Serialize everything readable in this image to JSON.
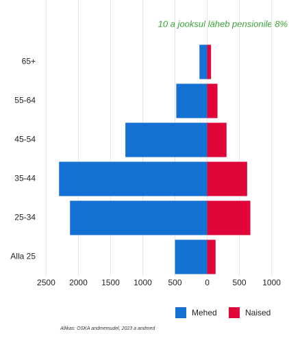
{
  "chart_data": {
    "type": "bar",
    "orientation": "horizontal",
    "annotation": "10 a jooksul läheb pensionile 8%",
    "source": "Allikas: OSKA andmemudel, 2023 a andmed",
    "categories": [
      "65+",
      "55-64",
      "45-54",
      "35-44",
      "25-34",
      "Alla 25"
    ],
    "series": [
      {
        "name": "Mehed",
        "color": "#1570d4",
        "values": [
          -120,
          -480,
          -1270,
          -2300,
          -2130,
          -500
        ]
      },
      {
        "name": "Naised",
        "color": "#e0063a",
        "values": [
          60,
          160,
          300,
          620,
          670,
          130
        ]
      }
    ],
    "xlim": [
      -2600,
      1100
    ],
    "xticks": [
      {
        "value": -2500,
        "label": "2500"
      },
      {
        "value": -2000,
        "label": "2000"
      },
      {
        "value": -1500,
        "label": "1500"
      },
      {
        "value": -1000,
        "label": "1000"
      },
      {
        "value": -500,
        "label": "500"
      },
      0,
      500,
      1000
    ],
    "grid": true,
    "legend": "bottom-right"
  }
}
